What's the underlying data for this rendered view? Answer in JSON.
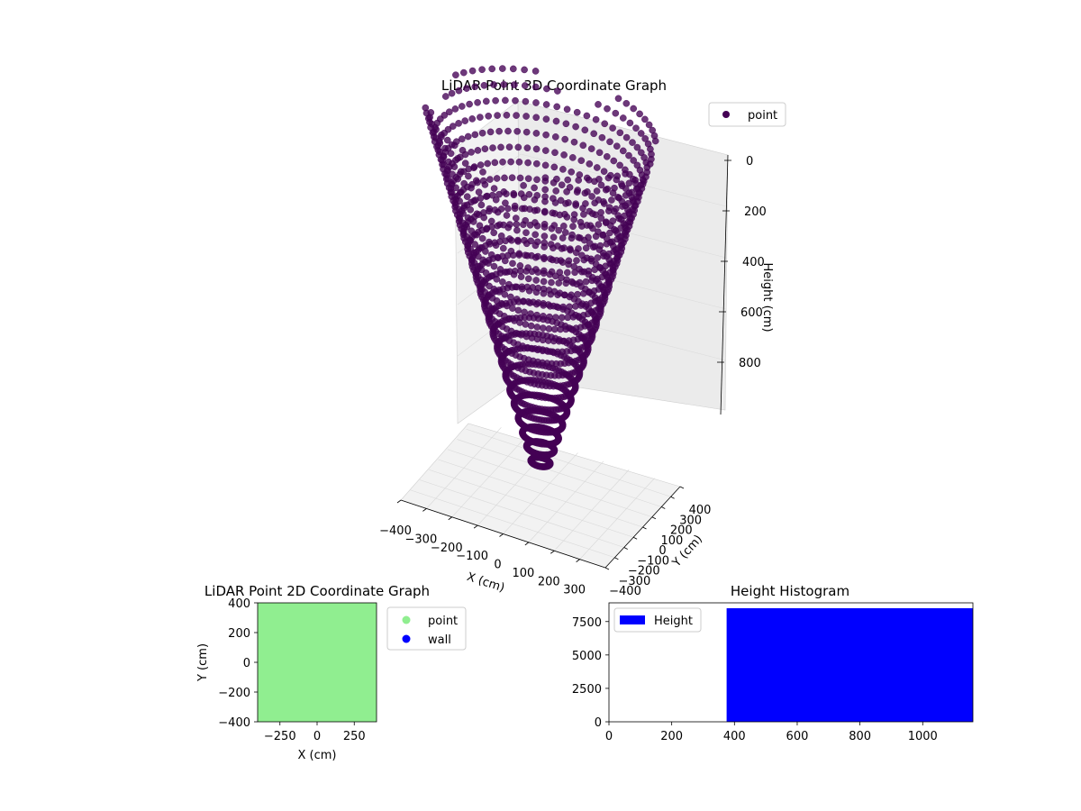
{
  "figure": {
    "charts": {
      "scatter3d": {
        "title": "LiDAR Point 3D Coordinate Graph",
        "xlabel": "X (cm)",
        "ylabel": "Y (cm)",
        "zlabel": "Height (cm)",
        "x_ticks": [
          "−400",
          "−300",
          "−200",
          "−100",
          "0",
          "100",
          "200",
          "300"
        ],
        "y_ticks": [
          "−400",
          "−300",
          "−200",
          "−100",
          "0",
          "100",
          "200",
          "300",
          "400"
        ],
        "z_ticks": [
          "0",
          "200",
          "400",
          "600",
          "800"
        ],
        "legend": [
          "point"
        ]
      },
      "scatter2d": {
        "title": "LiDAR Point 2D Coordinate Graph",
        "xlabel": "X (cm)",
        "ylabel": "Y (cm)",
        "x_ticks": [
          "−250",
          "0",
          "250"
        ],
        "y_ticks": [
          "400",
          "200",
          "0",
          "−200",
          "−400"
        ],
        "legend": [
          "point",
          "wall"
        ]
      },
      "histogram": {
        "title": "Height Histogram",
        "x_ticks": [
          "0",
          "200",
          "400",
          "600",
          "800",
          "1000"
        ],
        "y_ticks": [
          "0",
          "2500",
          "5000",
          "7500"
        ],
        "legend": [
          "Height"
        ]
      }
    }
  },
  "colors": {
    "point3d": "#440154",
    "point2d": "#90ee90",
    "wall": "#0000ff",
    "histogram_bar": "#0000ff",
    "pane": "#f2f2f2",
    "grid": "#d9d9d9"
  },
  "chart_data": [
    {
      "type": "scatter",
      "projection": "3d",
      "title": "LiDAR Point 3D Coordinate Graph",
      "xlabel": "X (cm)",
      "ylabel": "Y (cm)",
      "zlabel": "Height (cm)",
      "xlim": [
        -400,
        400
      ],
      "ylim": [
        -400,
        400
      ],
      "zlim": [
        0,
        1000
      ],
      "z_axis_inverted": true,
      "grid": true,
      "legend_position": "top-right",
      "series": [
        {
          "name": "point",
          "color": "#440154",
          "shape": "bowl of radial scan lines, low at center, rising toward the edges"
        }
      ]
    },
    {
      "type": "scatter",
      "title": "LiDAR Point 2D Coordinate Graph",
      "xlabel": "X (cm)",
      "ylabel": "Y (cm)",
      "xlim": [
        -400,
        400
      ],
      "ylim": [
        -400,
        400
      ],
      "legend_position": "outside right",
      "series": [
        {
          "name": "point",
          "color": "#90ee90",
          "fill_region": {
            "x": [
              -400,
              400
            ],
            "y": [
              -400,
              400
            ]
          }
        },
        {
          "name": "wall",
          "color": "#0000ff",
          "points": []
        }
      ]
    },
    {
      "type": "bar",
      "subtype": "histogram",
      "title": "Height Histogram",
      "xlim": [
        0,
        1160
      ],
      "ylim": [
        0,
        8900
      ],
      "legend_position": "top-left",
      "series": [
        {
          "name": "Height",
          "color": "#0000ff",
          "bins": [
            {
              "x0": 375,
              "x1": 1160,
              "count": 8500
            }
          ]
        }
      ]
    }
  ]
}
